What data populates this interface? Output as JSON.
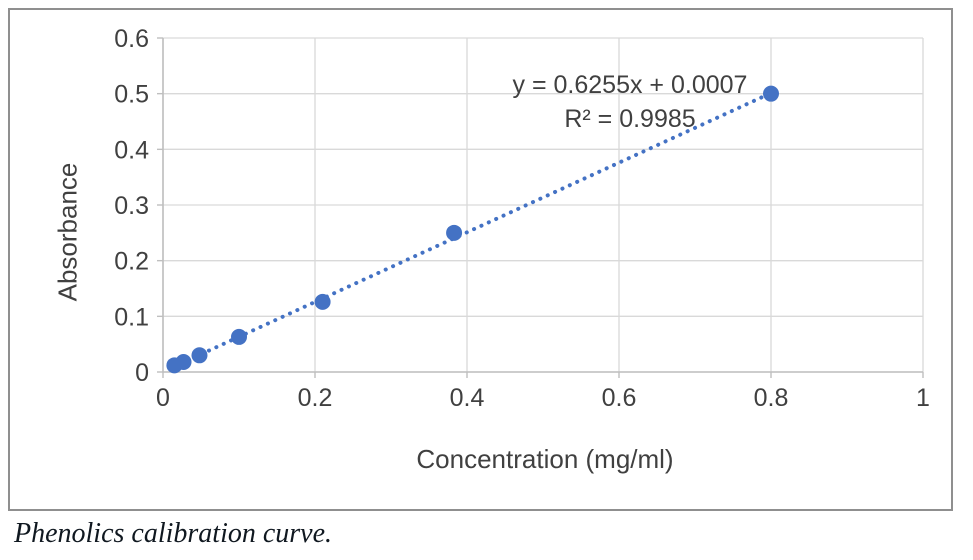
{
  "figure": {
    "caption": "Phenolics calibration curve."
  },
  "chart_data": {
    "type": "scatter",
    "title": "",
    "xlabel": "Concentration (mg/ml)",
    "ylabel": "Absorbance",
    "xlim": [
      0,
      1
    ],
    "ylim": [
      0,
      0.6
    ],
    "x_ticks": [
      0,
      0.2,
      0.4,
      0.6,
      0.8,
      1
    ],
    "y_ticks": [
      0,
      0.1,
      0.2,
      0.3,
      0.4,
      0.5,
      0.6
    ],
    "grid": true,
    "legend": "none",
    "points": [
      [
        0.015,
        0.012
      ],
      [
        0.027,
        0.018
      ],
      [
        0.048,
        0.03
      ],
      [
        0.1,
        0.063
      ],
      [
        0.21,
        0.126
      ],
      [
        0.383,
        0.25
      ],
      [
        0.8,
        0.5
      ]
    ],
    "trendline": {
      "slope": 0.6255,
      "intercept": 0.0007,
      "x_start": 0.012,
      "x_end": 0.81,
      "style": "dotted",
      "equation_line1": "y = 0.6255x + 0.0007",
      "equation_line2": "R² = 0.9985"
    },
    "colors": {
      "marker": "#4472C4",
      "trendline": "#4472C4",
      "gridline": "#D9D9D9",
      "axis": "#BFBFBF",
      "tick_text": "#404040",
      "annotation_text": "#404040"
    }
  }
}
